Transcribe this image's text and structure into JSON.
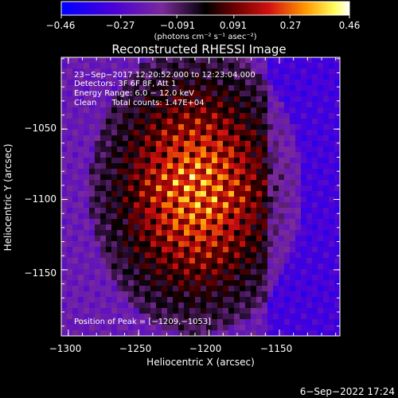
{
  "chart_data": {
    "type": "heatmap",
    "title": "Reconstructed RHESSI Image",
    "xlabel": "Heliocentric X (arcsec)",
    "ylabel": "Heliocentric Y (arcsec)",
    "xlim": [
      -1305,
      -1107
    ],
    "ylim": [
      -1197,
      -999
    ],
    "x_ticks": [
      -1300,
      -1250,
      -1200,
      -1150
    ],
    "y_ticks": [
      -1050,
      -1100,
      -1150
    ],
    "x_tick_labels": [
      "−1300",
      "−1250",
      "−1200",
      "−1150"
    ],
    "y_tick_labels": [
      "−1050",
      "−1100",
      "−1150"
    ],
    "colorbar": {
      "range": [
        -0.46,
        0.46
      ],
      "tick_values": [
        -0.46,
        -0.27,
        -0.091,
        0.091,
        0.27,
        0.46
      ],
      "tick_labels": [
        "−0.46",
        "−0.27",
        "−0.091",
        "0.091",
        "0.27",
        "0.46"
      ],
      "units": "(photons cm⁻² s⁻¹ asec⁻²)",
      "colormap": "blue-purple-red-yellow-white"
    },
    "annotations": {
      "line1": "23−Sep−2017 12:20:52.000 to 12:23:04.000",
      "line2": "Detectors: 3F 6F 8F, Att 1",
      "line3": "Energy Range: 6.0 − 12.0 keV",
      "line4": "Clean      Total counts: 1.47E+04",
      "peak": "Position of Peak = [−1209,−1053]"
    },
    "peak_position": [
      -1209,
      -1053
    ]
  },
  "footer": {
    "timestamp": "6−Sep−2022 17:24"
  }
}
